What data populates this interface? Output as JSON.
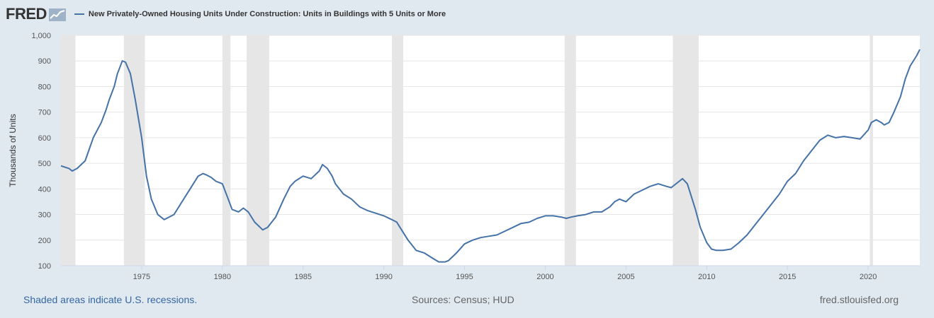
{
  "header": {
    "logo_text": "FRED",
    "series_title": "New Privately-Owned Housing Units Under Construction: Units in Buildings with 5 Units or More"
  },
  "footer": {
    "recessions_note": "Shaded areas indicate U.S. recessions.",
    "sources": "Sources: Census; HUD",
    "site": "fred.stlouisfed.org"
  },
  "colors": {
    "line": "#4572a7",
    "recession": "#e6e6e6",
    "background": "#e1e9f0",
    "plot": "#ffffff"
  },
  "chart_data": {
    "type": "line",
    "ylabel": "Thousands of Units",
    "xlim": [
      1970.0,
      2023.2
    ],
    "ylim": [
      100,
      1000
    ],
    "y_ticks": [
      100,
      200,
      300,
      400,
      500,
      600,
      700,
      800,
      900,
      1000
    ],
    "y_tick_labels": [
      "100",
      "200",
      "300",
      "400",
      "500",
      "600",
      "700",
      "800",
      "900",
      "1,000"
    ],
    "x_ticks": [
      1975,
      1980,
      1985,
      1990,
      1995,
      2000,
      2005,
      2010,
      2015,
      2020
    ],
    "x_tick_labels": [
      "1975",
      "1980",
      "1985",
      "1990",
      "1995",
      "2000",
      "2005",
      "2010",
      "2015",
      "2020"
    ],
    "grid": "horizontal",
    "recessions": [
      [
        1970.0,
        1970.9
      ],
      [
        1973.9,
        1975.2
      ],
      [
        1980.0,
        1980.5
      ],
      [
        1981.5,
        1982.9
      ],
      [
        1990.5,
        1991.2
      ],
      [
        2001.2,
        2001.9
      ],
      [
        2007.9,
        2009.5
      ],
      [
        2020.1,
        2020.3
      ]
    ],
    "series": [
      {
        "name": "New Privately-Owned Housing Units Under Construction: Units in Buildings with 5 Units or More",
        "x": [
          1970.0,
          1970.5,
          1970.7,
          1971.0,
          1971.5,
          1972.0,
          1972.5,
          1972.8,
          1973.0,
          1973.3,
          1973.5,
          1973.8,
          1974.0,
          1974.3,
          1974.6,
          1975.0,
          1975.3,
          1975.6,
          1976.0,
          1976.4,
          1977.0,
          1977.5,
          1978.0,
          1978.5,
          1978.8,
          1979.0,
          1979.3,
          1979.6,
          1980.0,
          1980.3,
          1980.6,
          1981.0,
          1981.3,
          1981.6,
          1982.0,
          1982.5,
          1982.8,
          1983.3,
          1983.8,
          1984.2,
          1984.5,
          1985.0,
          1985.5,
          1986.0,
          1986.2,
          1986.5,
          1986.8,
          1987.0,
          1987.5,
          1988.0,
          1988.5,
          1989.0,
          1989.5,
          1990.0,
          1990.5,
          1990.8,
          1991.0,
          1991.5,
          1992.0,
          1992.5,
          1993.0,
          1993.4,
          1993.8,
          1994.0,
          1994.5,
          1995.0,
          1995.5,
          1996.0,
          1996.5,
          1997.0,
          1997.5,
          1998.0,
          1998.5,
          1999.0,
          1999.5,
          2000.0,
          2000.5,
          2001.0,
          2001.3,
          2001.6,
          2002.0,
          2002.5,
          2003.0,
          2003.5,
          2004.0,
          2004.3,
          2004.6,
          2005.0,
          2005.5,
          2006.0,
          2006.5,
          2007.0,
          2007.5,
          2007.8,
          2008.0,
          2008.3,
          2008.5,
          2008.8,
          2009.0,
          2009.3,
          2009.6,
          2010.0,
          2010.3,
          2010.6,
          2011.0,
          2011.5,
          2012.0,
          2012.5,
          2013.0,
          2013.5,
          2014.0,
          2014.5,
          2015.0,
          2015.5,
          2016.0,
          2016.5,
          2017.0,
          2017.5,
          2018.0,
          2018.5,
          2019.0,
          2019.5,
          2020.0,
          2020.2,
          2020.5,
          2020.8,
          2021.0,
          2021.3,
          2021.6,
          2022.0,
          2022.3,
          2022.6,
          2023.0,
          2023.2
        ],
        "values": [
          490,
          480,
          470,
          480,
          510,
          600,
          660,
          710,
          750,
          800,
          850,
          900,
          895,
          850,
          750,
          600,
          450,
          360,
          300,
          280,
          300,
          350,
          400,
          450,
          460,
          455,
          445,
          430,
          420,
          370,
          320,
          310,
          325,
          310,
          270,
          240,
          250,
          290,
          360,
          410,
          430,
          450,
          440,
          470,
          495,
          480,
          450,
          420,
          380,
          360,
          330,
          315,
          305,
          295,
          280,
          270,
          250,
          200,
          160,
          150,
          130,
          115,
          115,
          120,
          150,
          185,
          200,
          210,
          215,
          220,
          235,
          250,
          265,
          270,
          285,
          295,
          295,
          290,
          285,
          290,
          295,
          300,
          310,
          310,
          330,
          350,
          360,
          350,
          380,
          395,
          410,
          420,
          410,
          405,
          415,
          430,
          440,
          420,
          380,
          320,
          250,
          190,
          165,
          160,
          160,
          165,
          190,
          220,
          260,
          300,
          340,
          380,
          430,
          460,
          510,
          550,
          590,
          610,
          600,
          605,
          600,
          595,
          630,
          660,
          670,
          660,
          650,
          660,
          700,
          760,
          830,
          880,
          920,
          945
        ]
      }
    ]
  }
}
